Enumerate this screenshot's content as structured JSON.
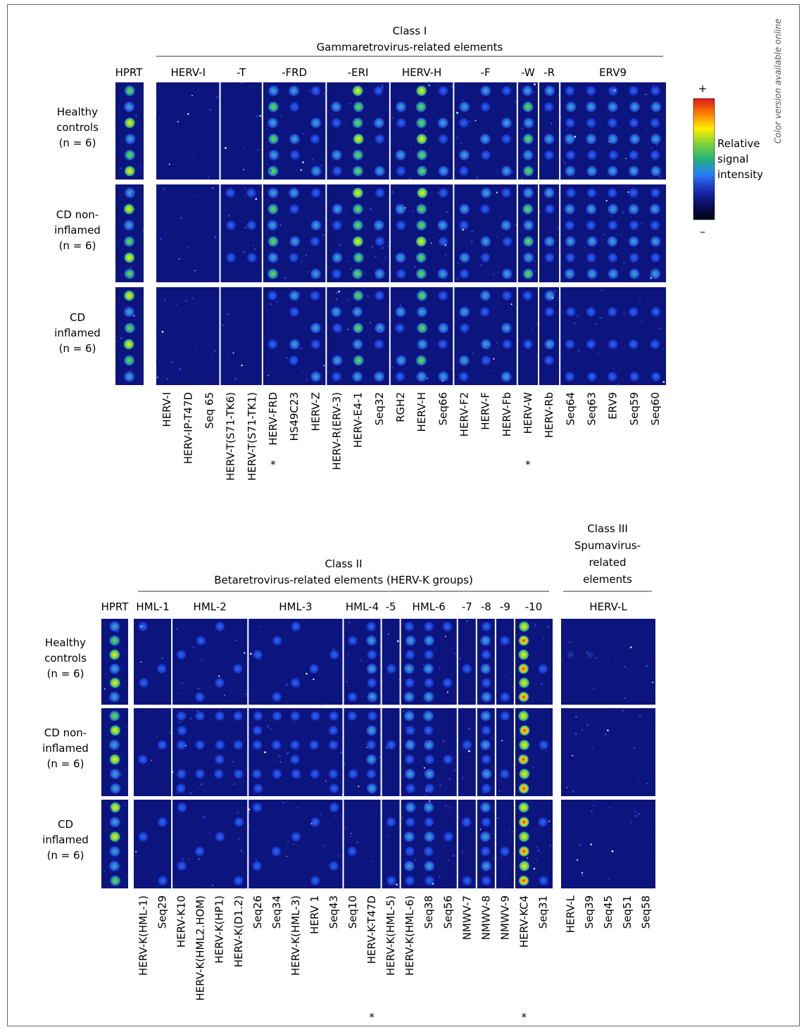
{
  "side_note": "Color version available online",
  "colorbar": {
    "plus": "+",
    "minus": "–",
    "label_lines": [
      "Relative",
      "signal",
      "intensity"
    ],
    "gradient": [
      "#d7191c",
      "#ff7f00",
      "#ffef00",
      "#7cd23a",
      "#25b27a",
      "#2a7ef5",
      "#1b2fb5",
      "#0a0f60",
      "#000010"
    ]
  },
  "star_color": "#6abf2e",
  "highlight_color": "#e3201b",
  "row_labels": [
    [
      "Healthy",
      "controls",
      "(n = 6)"
    ],
    [
      "CD non-",
      "inflamed",
      "(n = 6)"
    ],
    [
      "CD",
      "inflamed",
      "(n = 6)"
    ]
  ],
  "panel1": {
    "class_title": "Class I",
    "class_subtitle": "Gammaretrovirus-related elements",
    "hprt_label": "HPRT",
    "groups": [
      "HERV-I",
      "-T",
      "-FRD",
      "-ERI",
      "HERV-H",
      "-F",
      "-W",
      "-R",
      "ERV9"
    ],
    "columns": [
      {
        "name": "HERV-I"
      },
      {
        "name": "HERV-IP-T47D"
      },
      {
        "name": "Seq 65"
      },
      {
        "name": "HERV-T(S71-TK6)"
      },
      {
        "name": "HERV-T(S71-TK1)"
      },
      {
        "name": "HERV-FRD",
        "star": true
      },
      {
        "name": "HS49C23"
      },
      {
        "name": "HERV-Z"
      },
      {
        "name": "HERV-R(ERV-3)"
      },
      {
        "name": "HERV-E4-1",
        "red": true
      },
      {
        "name": "Seq32"
      },
      {
        "name": "RGH2"
      },
      {
        "name": "HERV-H",
        "red": true
      },
      {
        "name": "Seq66"
      },
      {
        "name": "HERV-F2"
      },
      {
        "name": "HERV-F"
      },
      {
        "name": "HERV-Fb"
      },
      {
        "name": "HERV-W",
        "star": true
      },
      {
        "name": "HERV-Rb"
      },
      {
        "name": "Seq64"
      },
      {
        "name": "Seq63"
      },
      {
        "name": "ERV9"
      },
      {
        "name": "Seq59"
      },
      {
        "name": "Seq60"
      }
    ]
  },
  "panel2": {
    "class_title": "Class II",
    "class_subtitle": "Betaretrovirus-related elements (HERV-K groups)",
    "class3_title_lines": [
      "Class III",
      "Spumavirus-",
      "related",
      "elements"
    ],
    "hprt_label": "HPRT",
    "groups": [
      "HML-1",
      "HML-2",
      "HML-3",
      "HML-4",
      "-5",
      "HML-6",
      "-7",
      "-8",
      "-9",
      "-10",
      "HERV-L"
    ],
    "columns": [
      {
        "name": "HERV-K(HML-1)"
      },
      {
        "name": "Seq29"
      },
      {
        "name": "HERV-K10"
      },
      {
        "name": "HERV-K(HML2.HOM)"
      },
      {
        "name": "HERV-K(HP1)"
      },
      {
        "name": "HERV-K(D1.2)"
      },
      {
        "name": "Seq26"
      },
      {
        "name": "Seq34"
      },
      {
        "name": "HERV-K(HML-3)"
      },
      {
        "name": "HERV 1"
      },
      {
        "name": "Seq43"
      },
      {
        "name": "Seq10"
      },
      {
        "name": "HERV-K-T47D",
        "star": true
      },
      {
        "name": "HERV-K(HML-5)"
      },
      {
        "name": "HERV-K(HML-6)",
        "red": true
      },
      {
        "name": "Seq38",
        "red": true
      },
      {
        "name": "Seq56"
      },
      {
        "name": "NMWV-7"
      },
      {
        "name": "NMWV-8",
        "red": true
      },
      {
        "name": "NMWV-9"
      },
      {
        "name": "HERV-KC4",
        "red": true,
        "star": true
      },
      {
        "name": "Seq31"
      },
      {
        "name": "HERV-L"
      },
      {
        "name": "Seq39"
      },
      {
        "name": "Seq45"
      },
      {
        "name": "Seq51"
      },
      {
        "name": "Seq58"
      }
    ]
  }
}
